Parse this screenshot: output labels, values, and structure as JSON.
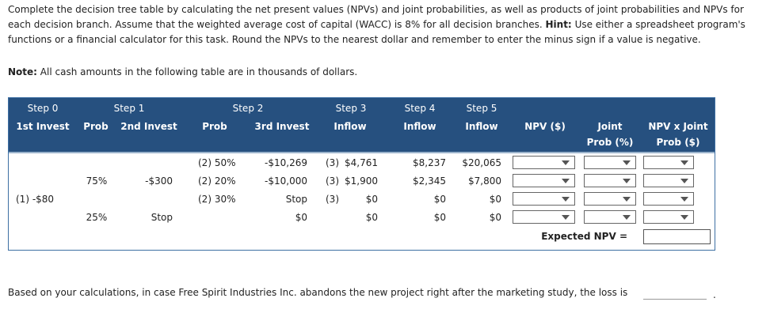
{
  "intro": {
    "before": "Complete the decision tree table by calculating the net present values (NPVs) and joint probabilities, as well as products of joint probabilities and NPVs for each decision branch. Assume that the weighted average cost of capital (WACC) is 8% for all decision branches.",
    "hint_label": "Hint:",
    "after": "Use either a spreadsheet program's functions or a financial calculator for this task. Round the NPVs to the nearest dollar and remember to enter the minus sign if a value is negative."
  },
  "note": {
    "label": "Note:",
    "text": "All cash amounts in the following table are in thousands of dollars."
  },
  "table": {
    "header_row1": [
      "Step 0",
      "Step 1",
      "Step 2",
      "Step 3",
      "Step 4",
      "Step 5"
    ],
    "header_row2": [
      "1st Invest",
      "Prob",
      "2nd Invest",
      "Prob",
      "3rd Invest",
      "Inflow",
      "Inflow",
      "Inflow",
      "NPV ($)",
      "Joint Prob (%)",
      "NPV x Joint Prob ($)"
    ],
    "rows": [
      [
        null,
        null,
        null,
        "(2) 50%",
        "-$10,269",
        "(3)",
        "$4,761",
        "$8,237",
        "$20,065"
      ],
      [
        null,
        "75%",
        "-$300",
        "(2) 20%",
        "-$10,000",
        "(3)",
        "$1,900",
        "$2,345",
        "$7,800"
      ],
      [
        "(1) -$80",
        null,
        null,
        "(2) 30%",
        "Stop",
        "(3)",
        "$0",
        "$0",
        "$0"
      ],
      [
        null,
        "25%",
        "Stop",
        null,
        "$0",
        null,
        "$0",
        "$0",
        "$0"
      ]
    ],
    "expected_npv_label": "Expected NPV ="
  },
  "question": "Based on your calculations, in case Free Spirit Industries Inc. abandons the new project right after the marketing study, the loss is"
}
